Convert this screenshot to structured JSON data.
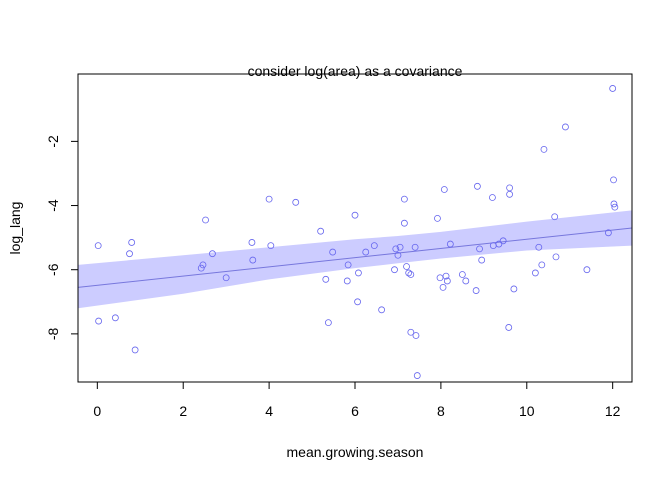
{
  "chart_data": {
    "type": "scatter",
    "title": "consider log(area) as a covariance",
    "xlabel": "mean.growing.season",
    "ylabel": "log_lang",
    "xlim": [
      -0.45,
      12.45
    ],
    "ylim": [
      -9.5,
      0.1
    ],
    "xticks": [
      0,
      2,
      4,
      6,
      8,
      10,
      12
    ],
    "yticks": [
      -8,
      -6,
      -4,
      -2
    ],
    "grid": false,
    "legend": "none",
    "colors": {
      "points": "#6666ee",
      "line": "#7777dd",
      "band": "#ccccff",
      "box": "#000000"
    },
    "points": [
      [
        0.02,
        -5.25
      ],
      [
        0.03,
        -7.6
      ],
      [
        0.42,
        -7.5
      ],
      [
        0.75,
        -5.5
      ],
      [
        0.8,
        -5.15
      ],
      [
        0.88,
        -8.5
      ],
      [
        2.42,
        -5.95
      ],
      [
        2.46,
        -5.85
      ],
      [
        2.52,
        -4.45
      ],
      [
        2.68,
        -5.5
      ],
      [
        3.0,
        -6.25
      ],
      [
        3.6,
        -5.15
      ],
      [
        3.62,
        -5.7
      ],
      [
        4.0,
        -3.8
      ],
      [
        4.04,
        -5.25
      ],
      [
        4.62,
        -3.9
      ],
      [
        5.2,
        -4.8
      ],
      [
        5.32,
        -6.3
      ],
      [
        5.38,
        -7.65
      ],
      [
        5.48,
        -5.45
      ],
      [
        5.84,
        -5.85
      ],
      [
        5.82,
        -6.35
      ],
      [
        6.0,
        -4.3
      ],
      [
        6.06,
        -7.0
      ],
      [
        6.08,
        -6.1
      ],
      [
        6.25,
        -5.45
      ],
      [
        6.45,
        -5.25
      ],
      [
        6.62,
        -7.25
      ],
      [
        6.92,
        -6.0
      ],
      [
        6.95,
        -5.35
      ],
      [
        7.0,
        -5.55
      ],
      [
        7.05,
        -5.3
      ],
      [
        7.15,
        -3.8
      ],
      [
        7.15,
        -4.55
      ],
      [
        7.2,
        -5.9
      ],
      [
        7.25,
        -6.1
      ],
      [
        7.3,
        -6.15
      ],
      [
        7.3,
        -7.95
      ],
      [
        7.4,
        -5.3
      ],
      [
        7.42,
        -8.05
      ],
      [
        7.45,
        -9.3
      ],
      [
        7.92,
        -4.4
      ],
      [
        7.98,
        -6.25
      ],
      [
        8.05,
        -6.55
      ],
      [
        8.08,
        -3.5
      ],
      [
        8.12,
        -6.2
      ],
      [
        8.15,
        -6.35
      ],
      [
        8.22,
        -5.2
      ],
      [
        8.5,
        -6.15
      ],
      [
        8.58,
        -6.35
      ],
      [
        8.82,
        -6.65
      ],
      [
        8.85,
        -3.4
      ],
      [
        8.9,
        -5.35
      ],
      [
        8.95,
        -5.7
      ],
      [
        9.2,
        -3.75
      ],
      [
        9.22,
        -5.25
      ],
      [
        9.35,
        -5.2
      ],
      [
        9.45,
        -5.1
      ],
      [
        9.58,
        -7.8
      ],
      [
        9.6,
        -3.45
      ],
      [
        9.6,
        -3.65
      ],
      [
        9.7,
        -6.6
      ],
      [
        10.2,
        -6.1
      ],
      [
        10.28,
        -5.3
      ],
      [
        10.35,
        -5.85
      ],
      [
        10.4,
        -2.25
      ],
      [
        10.65,
        -4.35
      ],
      [
        10.68,
        -5.6
      ],
      [
        10.9,
        -1.55
      ],
      [
        11.4,
        -6.0
      ],
      [
        11.9,
        -4.85
      ],
      [
        12.0,
        -0.35
      ],
      [
        12.02,
        -3.2
      ],
      [
        12.03,
        -3.95
      ],
      [
        12.05,
        -4.05
      ]
    ],
    "fit_line": [
      [
        -0.45,
        -6.55
      ],
      [
        12.45,
        -4.7
      ]
    ],
    "band_upper": [
      [
        -0.45,
        -5.85
      ],
      [
        2,
        -5.55
      ],
      [
        4,
        -5.3
      ],
      [
        6,
        -5.05
      ],
      [
        7,
        -4.95
      ],
      [
        8,
        -4.82
      ],
      [
        10,
        -4.5
      ],
      [
        12.45,
        -4.15
      ]
    ],
    "band_lower": [
      [
        -0.45,
        -7.2
      ],
      [
        2,
        -6.75
      ],
      [
        4,
        -6.3
      ],
      [
        6,
        -5.95
      ],
      [
        7,
        -5.8
      ],
      [
        8,
        -5.65
      ],
      [
        10,
        -5.4
      ],
      [
        12.45,
        -5.25
      ]
    ]
  }
}
